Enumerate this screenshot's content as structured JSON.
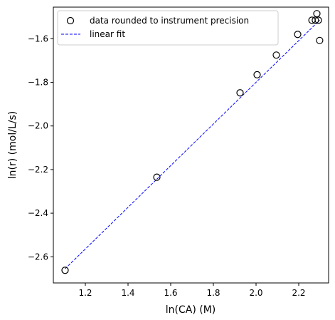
{
  "chart_data": {
    "type": "scatter",
    "title": "",
    "xlabel": "ln(CA) (M)",
    "ylabel": "ln(r) (mol/L/s)",
    "xlim": [
      1.05,
      2.34
    ],
    "ylim": [
      -2.72,
      -1.455
    ],
    "xticks": [
      1.2,
      1.4,
      1.6,
      1.8,
      2.0,
      2.2
    ],
    "xtick_labels": [
      "1.2",
      "1.4",
      "1.6",
      "1.8",
      "2.0",
      "2.2"
    ],
    "yticks": [
      -2.6,
      -2.4,
      -2.2,
      -2.0,
      -1.8,
      -1.6
    ],
    "ytick_labels": [
      "−2.6",
      "−2.4",
      "−2.2",
      "−2.0",
      "−1.8",
      "−1.6"
    ],
    "grid": false,
    "legend_position": "top-left",
    "series": [
      {
        "name": "data rounded to instrument precision",
        "kind": "scatter",
        "marker": "open-circle",
        "color": "#000000",
        "x": [
          1.105,
          1.535,
          1.925,
          2.005,
          2.095,
          2.195,
          2.262,
          2.278,
          2.285,
          2.292,
          2.298
        ],
        "y": [
          -2.662,
          -2.235,
          -1.848,
          -1.765,
          -1.675,
          -1.58,
          -1.515,
          -1.515,
          -1.485,
          -1.515,
          -1.608
        ]
      },
      {
        "name": "linear fit",
        "kind": "line",
        "style": "dashed",
        "color": "#0000ff",
        "x": [
          1.105,
          2.298
        ],
        "y": [
          -2.655,
          -1.515
        ]
      }
    ]
  }
}
